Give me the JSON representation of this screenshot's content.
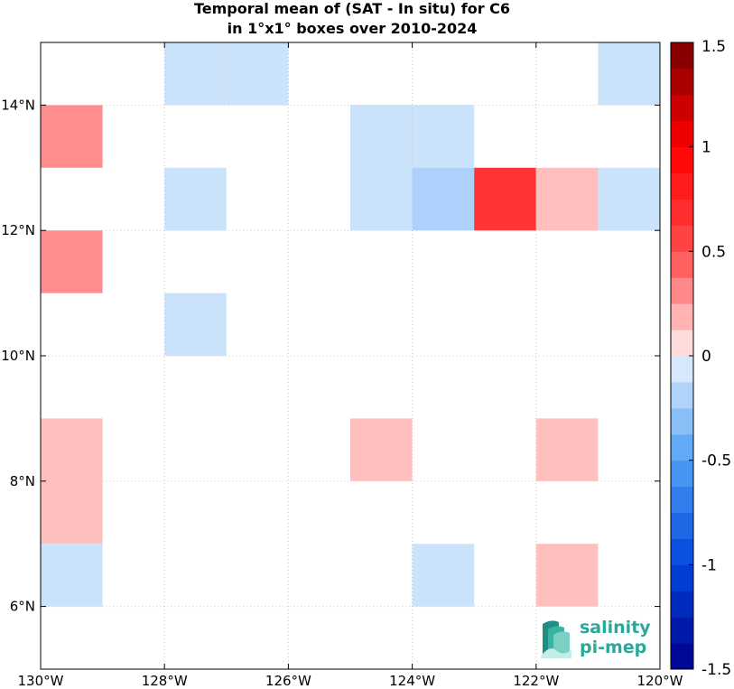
{
  "chart_data": {
    "type": "heatmap",
    "title": "Temporal mean of (SAT - In situ) for C6",
    "subtitle": "in 1°x1° boxes over 2010-2024",
    "xlabel": "",
    "ylabel": "",
    "x_range": [
      -130,
      -120
    ],
    "y_range": [
      5,
      15
    ],
    "x_ticks": [
      -130,
      -128,
      -126,
      -124,
      -122,
      -120
    ],
    "x_tick_labels": [
      "130°W",
      "128°W",
      "126°W",
      "124°W",
      "122°W",
      "120°W"
    ],
    "y_ticks": [
      6,
      8,
      10,
      12,
      14
    ],
    "y_tick_labels": [
      "6°N",
      "8°N",
      "10°N",
      "12°N",
      "14°N"
    ],
    "grid": true,
    "cell_size_deg": 1,
    "cells": [
      {
        "lon": -128,
        "lat": 14,
        "value": -0.1
      },
      {
        "lon": -127,
        "lat": 14,
        "value": -0.1
      },
      {
        "lon": -121,
        "lat": 14,
        "value": -0.1
      },
      {
        "lon": -130,
        "lat": 13,
        "value": 0.3
      },
      {
        "lon": -125,
        "lat": 13,
        "value": -0.1
      },
      {
        "lon": -124,
        "lat": 13,
        "value": -0.1
      },
      {
        "lon": -128,
        "lat": 12,
        "value": -0.1
      },
      {
        "lon": -125,
        "lat": 12,
        "value": -0.1
      },
      {
        "lon": -124,
        "lat": 12,
        "value": -0.2
      },
      {
        "lon": -123,
        "lat": 12,
        "value": 0.65
      },
      {
        "lon": -122,
        "lat": 12,
        "value": 0.15
      },
      {
        "lon": -121,
        "lat": 12,
        "value": -0.1
      },
      {
        "lon": -130,
        "lat": 11,
        "value": 0.3
      },
      {
        "lon": -128,
        "lat": 10,
        "value": -0.1
      },
      {
        "lon": -130,
        "lat": 8,
        "value": 0.15
      },
      {
        "lon": -125,
        "lat": 8,
        "value": 0.15
      },
      {
        "lon": -122,
        "lat": 8,
        "value": 0.15
      },
      {
        "lon": -130,
        "lat": 7,
        "value": 0.15
      },
      {
        "lon": -130,
        "lat": 6,
        "value": -0.1
      },
      {
        "lon": -124,
        "lat": 6,
        "value": -0.1
      },
      {
        "lon": -122,
        "lat": 6,
        "value": 0.15
      }
    ],
    "colorbar": {
      "range": [
        -1.5,
        1.5
      ],
      "ticks": [
        -1.5,
        -1,
        -0.5,
        0,
        0.5,
        1,
        1.5
      ],
      "tick_labels": [
        "-1.5",
        "-1",
        "-0.5",
        "0",
        "0.5",
        "1",
        "1.5"
      ],
      "colormap": "blue-white-red"
    }
  },
  "logo": {
    "line1": "salinity",
    "line2": "pi-mep",
    "color": "#2aa89a"
  }
}
